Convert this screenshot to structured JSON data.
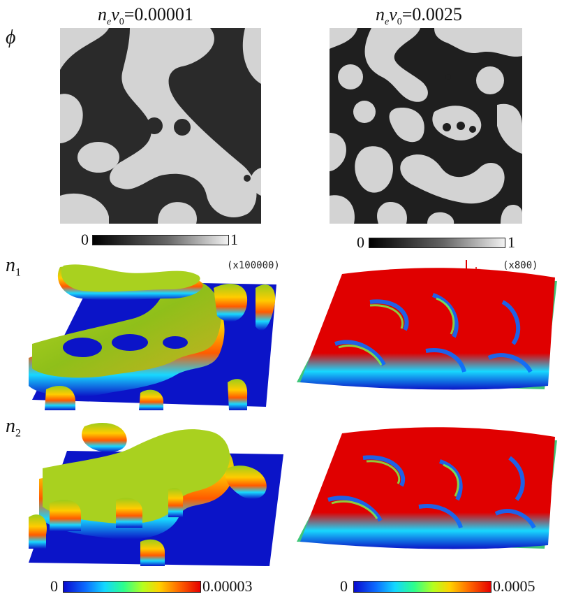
{
  "columns": [
    {
      "title_prefix": "n",
      "title_sub1": "e",
      "title_mid": "v",
      "title_sub2": "0",
      "title_eq": "=0.00001"
    },
    {
      "title_prefix": "n",
      "title_sub1": "e",
      "title_mid": "v",
      "title_sub2": "0",
      "title_eq": "=0.0025"
    }
  ],
  "rows": {
    "phi": {
      "label": "ϕ"
    },
    "n1": {
      "label": "n",
      "sub": "1"
    },
    "n2": {
      "label": "n",
      "sub": "2"
    }
  },
  "phi_colorbar": {
    "min": "0",
    "max": "1"
  },
  "scale_left": "(x100000)",
  "scale_right": "(x800)",
  "n_colorbar_left": {
    "min": "0",
    "max": "0.00003"
  },
  "n_colorbar_right": {
    "min": "0",
    "max": "0.0005"
  },
  "colors": {
    "dark_phase": "#2a2a2a",
    "light_phase": "#d3d3d3",
    "floor": "#0b14c8",
    "ridge_left": "#8fbf1a",
    "ridge_right": "#e00000"
  }
}
